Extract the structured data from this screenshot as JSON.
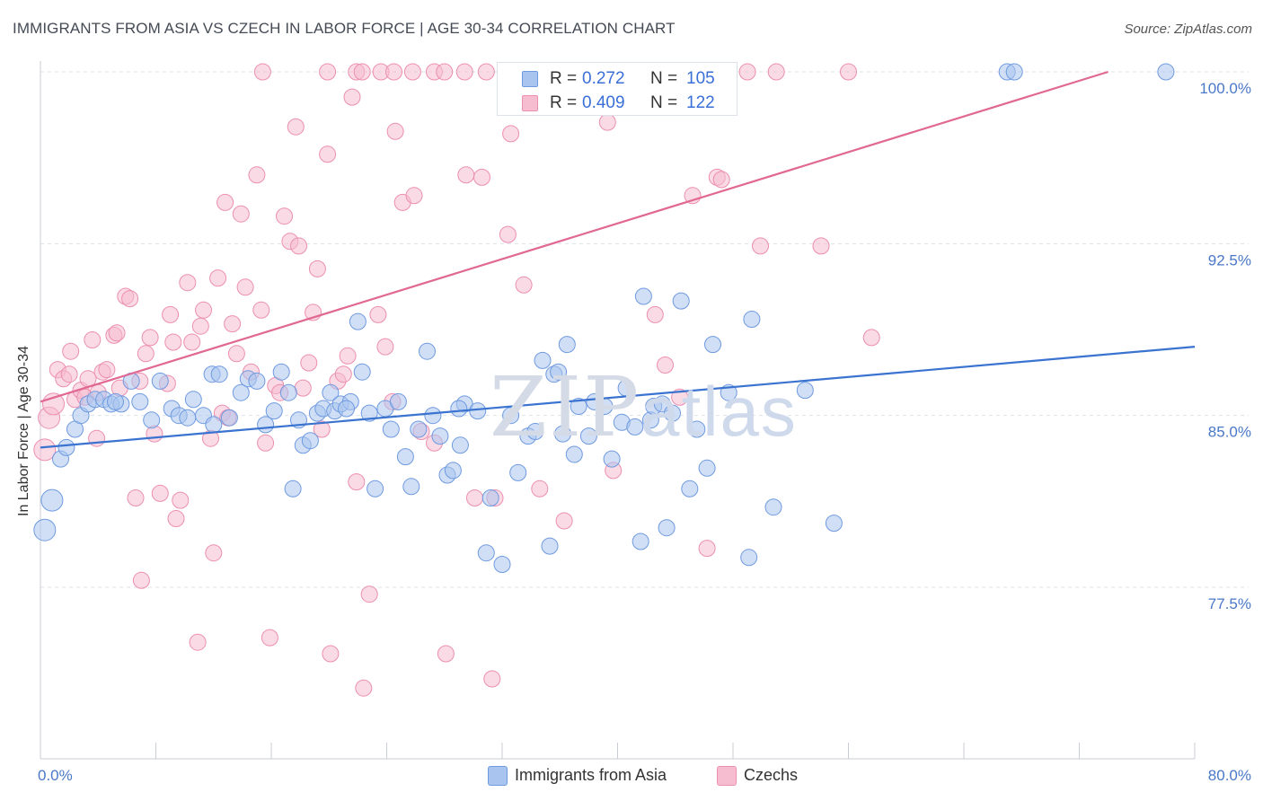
{
  "header": {
    "title": "IMMIGRANTS FROM ASIA VS CZECH IN LABOR FORCE | AGE 30-34 CORRELATION CHART",
    "source": "Source: ZipAtlas.com"
  },
  "watermark": {
    "zip": "ZIP",
    "atlas": "atlas"
  },
  "legend_top": {
    "rows": [
      {
        "r_label": "R =",
        "r_value": "0.272",
        "n_label": "N =",
        "n_value": "105"
      },
      {
        "r_label": "R =",
        "r_value": "0.409",
        "n_label": "N =",
        "n_value": "122"
      }
    ]
  },
  "legend_bottom": {
    "items": [
      {
        "label": "Immigrants from Asia"
      },
      {
        "label": "Czechs"
      }
    ]
  },
  "colors": {
    "blue_fill": "#a9c4ee",
    "blue_stroke": "#6f9ae0",
    "blue_line": "#3a73d0",
    "pink_fill": "#f6bccf",
    "pink_stroke": "#ec8fb0",
    "pink_line": "#e06892",
    "grid": "#dde2ea",
    "tick_text": "#4a78c8"
  },
  "chart_data": {
    "type": "scatter",
    "title": "IMMIGRANTS FROM ASIA VS CZECH IN LABOR FORCE | AGE 30-34 CORRELATION CHART",
    "xlabel": "",
    "ylabel": "In Labor Force | Age 30-34",
    "xlim": [
      0,
      80
    ],
    "ylim": [
      70.0,
      101.0
    ],
    "x_tick_labels": [
      "0.0%",
      "80.0%"
    ],
    "y_ticks": [
      77.5,
      85.0,
      92.5,
      100.0
    ],
    "y_tick_labels": [
      "77.5%",
      "85.0%",
      "92.5%",
      "100.0%"
    ],
    "grid": true,
    "legend_position": "top-center",
    "series": [
      {
        "name": "Immigrants from Asia",
        "color": "#a9c4ee",
        "r": 0.272,
        "n": 105,
        "trend": [
          [
            0,
            83.6
          ],
          [
            80,
            88.0
          ]
        ],
        "points": [
          [
            0.3,
            80.0
          ],
          [
            0.8,
            81.3
          ],
          [
            1.4,
            83.1
          ],
          [
            1.8,
            83.6
          ],
          [
            2.4,
            84.4
          ],
          [
            2.8,
            85.0
          ],
          [
            3.3,
            85.5
          ],
          [
            3.8,
            85.7
          ],
          [
            4.4,
            85.7
          ],
          [
            4.9,
            85.5
          ],
          [
            5.6,
            85.5
          ],
          [
            6.3,
            86.5
          ],
          [
            6.9,
            85.6
          ],
          [
            7.7,
            84.8
          ],
          [
            8.3,
            86.5
          ],
          [
            9.1,
            85.3
          ],
          [
            9.6,
            85.0
          ],
          [
            10.2,
            84.9
          ],
          [
            10.6,
            85.7
          ],
          [
            11.3,
            85.0
          ],
          [
            11.9,
            86.8
          ],
          [
            12.4,
            86.8
          ],
          [
            13.1,
            84.9
          ],
          [
            13.9,
            86.0
          ],
          [
            14.4,
            86.6
          ],
          [
            15.0,
            86.5
          ],
          [
            15.6,
            84.6
          ],
          [
            16.2,
            85.2
          ],
          [
            16.7,
            86.9
          ],
          [
            17.2,
            86.0
          ],
          [
            17.5,
            81.8
          ],
          [
            17.9,
            84.8
          ],
          [
            18.2,
            83.7
          ],
          [
            18.7,
            83.9
          ],
          [
            19.2,
            85.1
          ],
          [
            19.6,
            85.3
          ],
          [
            20.1,
            86.0
          ],
          [
            20.4,
            85.2
          ],
          [
            20.8,
            85.5
          ],
          [
            21.5,
            85.6
          ],
          [
            22.0,
            89.1
          ],
          [
            22.3,
            86.9
          ],
          [
            22.8,
            85.1
          ],
          [
            23.2,
            81.8
          ],
          [
            23.9,
            85.3
          ],
          [
            24.3,
            84.4
          ],
          [
            24.8,
            85.6
          ],
          [
            25.3,
            83.2
          ],
          [
            25.7,
            81.9
          ],
          [
            26.2,
            84.4
          ],
          [
            26.8,
            87.8
          ],
          [
            27.2,
            85.0
          ],
          [
            27.7,
            84.1
          ],
          [
            28.2,
            82.4
          ],
          [
            28.6,
            82.6
          ],
          [
            29.1,
            83.7
          ],
          [
            29.4,
            85.5
          ],
          [
            30.3,
            85.2
          ],
          [
            30.9,
            79.0
          ],
          [
            31.2,
            81.4
          ],
          [
            32.0,
            78.5
          ],
          [
            32.6,
            85.0
          ],
          [
            33.1,
            82.5
          ],
          [
            33.8,
            84.1
          ],
          [
            34.3,
            84.3
          ],
          [
            34.8,
            87.4
          ],
          [
            35.3,
            79.3
          ],
          [
            35.6,
            86.8
          ],
          [
            35.9,
            86.9
          ],
          [
            36.5,
            88.1
          ],
          [
            37.0,
            83.3
          ],
          [
            37.3,
            85.4
          ],
          [
            38.0,
            84.1
          ],
          [
            38.4,
            85.6
          ],
          [
            39.1,
            85.4
          ],
          [
            39.6,
            83.1
          ],
          [
            40.3,
            84.7
          ],
          [
            40.6,
            86.2
          ],
          [
            41.2,
            84.5
          ],
          [
            41.6,
            79.5
          ],
          [
            41.8,
            90.2
          ],
          [
            42.3,
            84.8
          ],
          [
            42.5,
            85.4
          ],
          [
            43.1,
            85.5
          ],
          [
            43.4,
            80.1
          ],
          [
            43.8,
            85.1
          ],
          [
            44.4,
            90.0
          ],
          [
            45.0,
            81.8
          ],
          [
            45.5,
            84.4
          ],
          [
            46.2,
            82.7
          ],
          [
            46.6,
            88.1
          ],
          [
            47.7,
            86.0
          ],
          [
            49.1,
            78.8
          ],
          [
            49.3,
            89.2
          ],
          [
            50.8,
            81.0
          ],
          [
            53.0,
            86.1
          ],
          [
            55.0,
            80.3
          ],
          [
            67.0,
            100.0
          ],
          [
            67.5,
            100.0
          ],
          [
            78.0,
            100.0
          ],
          [
            5.2,
            85.6
          ],
          [
            12.0,
            84.6
          ],
          [
            21.2,
            85.3
          ],
          [
            29.0,
            85.3
          ],
          [
            36.2,
            84.2
          ]
        ]
      },
      {
        "name": "Czechs",
        "color": "#f6bccf",
        "r": 0.409,
        "n": 122,
        "trend": [
          [
            0,
            85.6
          ],
          [
            74,
            100.0
          ]
        ],
        "points": [
          [
            0.3,
            83.5
          ],
          [
            0.6,
            84.9
          ],
          [
            0.9,
            85.5
          ],
          [
            1.2,
            87.0
          ],
          [
            1.6,
            86.6
          ],
          [
            2.0,
            86.8
          ],
          [
            2.1,
            87.8
          ],
          [
            2.4,
            85.7
          ],
          [
            2.8,
            86.1
          ],
          [
            3.1,
            85.8
          ],
          [
            3.6,
            88.3
          ],
          [
            3.9,
            84.0
          ],
          [
            4.3,
            86.9
          ],
          [
            4.6,
            87.0
          ],
          [
            5.1,
            88.5
          ],
          [
            5.3,
            88.6
          ],
          [
            5.5,
            86.2
          ],
          [
            5.9,
            90.2
          ],
          [
            6.2,
            90.1
          ],
          [
            6.6,
            81.4
          ],
          [
            6.9,
            86.5
          ],
          [
            7.0,
            77.8
          ],
          [
            7.3,
            87.7
          ],
          [
            7.6,
            88.4
          ],
          [
            7.9,
            84.2
          ],
          [
            8.3,
            81.6
          ],
          [
            8.8,
            86.4
          ],
          [
            9.0,
            89.4
          ],
          [
            9.2,
            88.2
          ],
          [
            9.4,
            80.5
          ],
          [
            9.7,
            81.3
          ],
          [
            10.2,
            90.8
          ],
          [
            10.5,
            88.2
          ],
          [
            10.9,
            75.1
          ],
          [
            11.1,
            88.9
          ],
          [
            11.3,
            89.6
          ],
          [
            11.8,
            84.0
          ],
          [
            12.0,
            79.0
          ],
          [
            12.3,
            91.0
          ],
          [
            12.6,
            85.1
          ],
          [
            12.8,
            94.3
          ],
          [
            13.0,
            84.9
          ],
          [
            13.3,
            89.0
          ],
          [
            13.6,
            87.7
          ],
          [
            13.9,
            93.8
          ],
          [
            14.2,
            90.6
          ],
          [
            14.6,
            86.9
          ],
          [
            15.0,
            95.5
          ],
          [
            15.3,
            89.6
          ],
          [
            15.6,
            83.8
          ],
          [
            15.9,
            75.3
          ],
          [
            16.3,
            86.3
          ],
          [
            16.6,
            86.0
          ],
          [
            16.9,
            93.7
          ],
          [
            17.3,
            92.6
          ],
          [
            17.7,
            97.6
          ],
          [
            17.9,
            92.4
          ],
          [
            18.2,
            86.2
          ],
          [
            18.6,
            87.3
          ],
          [
            18.9,
            89.5
          ],
          [
            19.2,
            91.4
          ],
          [
            19.5,
            84.4
          ],
          [
            19.9,
            96.4
          ],
          [
            20.1,
            74.6
          ],
          [
            20.6,
            86.5
          ],
          [
            21.0,
            86.8
          ],
          [
            21.3,
            87.6
          ],
          [
            21.6,
            98.9
          ],
          [
            21.9,
            82.1
          ],
          [
            22.4,
            73.1
          ],
          [
            22.8,
            77.2
          ],
          [
            23.4,
            89.4
          ],
          [
            23.9,
            88.0
          ],
          [
            24.4,
            85.6
          ],
          [
            24.6,
            97.4
          ],
          [
            25.1,
            94.3
          ],
          [
            25.9,
            94.6
          ],
          [
            26.4,
            84.3
          ],
          [
            27.3,
            83.8
          ],
          [
            28.1,
            74.6
          ],
          [
            29.5,
            95.5
          ],
          [
            30.1,
            81.4
          ],
          [
            30.6,
            95.4
          ],
          [
            31.3,
            73.5
          ],
          [
            31.5,
            81.4
          ],
          [
            32.4,
            92.9
          ],
          [
            32.6,
            97.3
          ],
          [
            33.5,
            90.7
          ],
          [
            34.6,
            81.8
          ],
          [
            36.3,
            80.4
          ],
          [
            39.3,
            97.8
          ],
          [
            39.7,
            82.6
          ],
          [
            40.1,
            100.0
          ],
          [
            40.4,
            100.0
          ],
          [
            42.6,
            89.4
          ],
          [
            43.3,
            87.2
          ],
          [
            44.3,
            85.8
          ],
          [
            45.2,
            94.6
          ],
          [
            46.2,
            79.2
          ],
          [
            46.9,
            95.4
          ],
          [
            47.2,
            95.3
          ],
          [
            49.9,
            92.4
          ],
          [
            54.1,
            92.4
          ],
          [
            57.6,
            88.4
          ],
          [
            4.0,
            86.0
          ],
          [
            3.3,
            86.6
          ],
          [
            15.4,
            100.0
          ],
          [
            19.9,
            100.0
          ],
          [
            21.9,
            100.0
          ],
          [
            22.3,
            100.0
          ],
          [
            23.6,
            100.0
          ],
          [
            24.5,
            100.0
          ],
          [
            25.8,
            100.0
          ],
          [
            27.3,
            100.0
          ],
          [
            28.0,
            100.0
          ],
          [
            29.4,
            100.0
          ],
          [
            30.9,
            100.0
          ],
          [
            32.4,
            100.0
          ],
          [
            37.0,
            100.0
          ],
          [
            49.0,
            100.0
          ],
          [
            51.0,
            100.0
          ],
          [
            56.0,
            100.0
          ]
        ]
      }
    ]
  }
}
